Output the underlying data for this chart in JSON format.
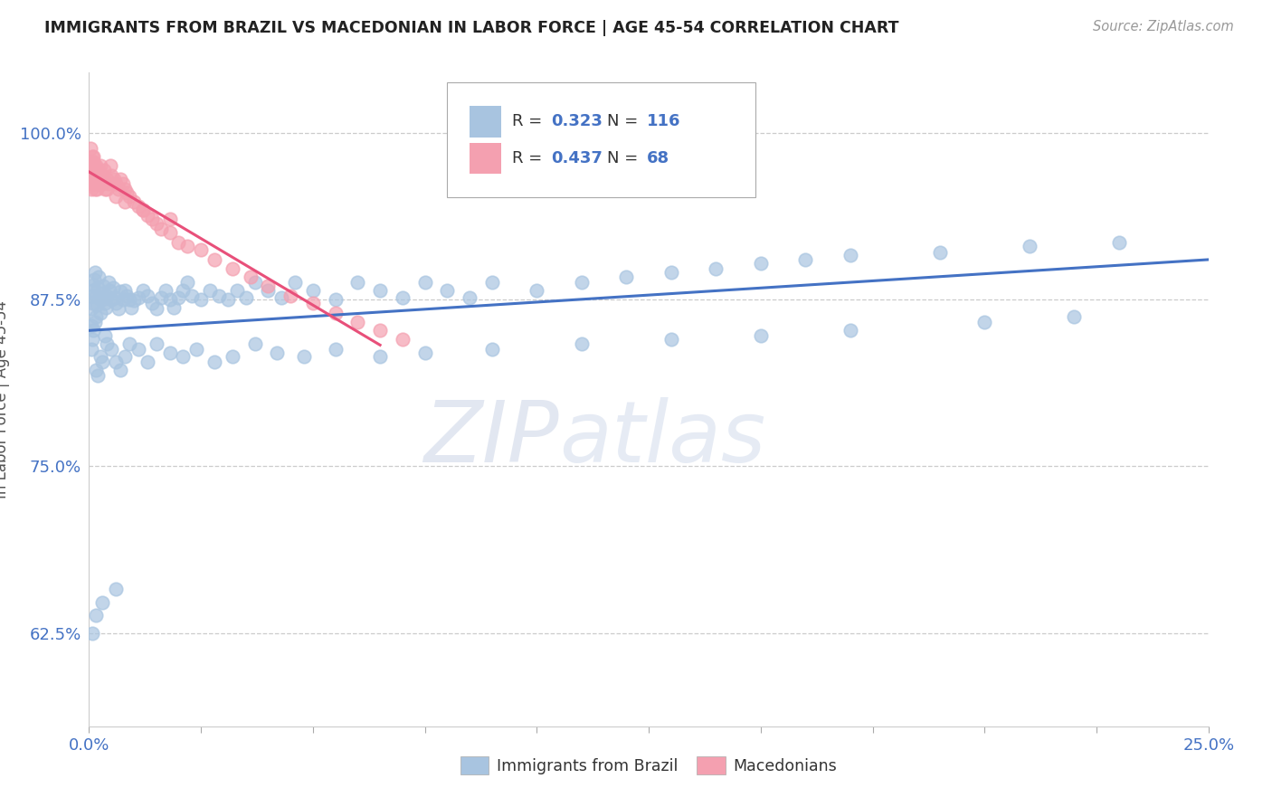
{
  "title": "IMMIGRANTS FROM BRAZIL VS MACEDONIAN IN LABOR FORCE | AGE 45-54 CORRELATION CHART",
  "source": "Source: ZipAtlas.com",
  "ylabel": "In Labor Force | Age 45-54",
  "yticks": [
    0.625,
    0.75,
    0.875,
    1.0
  ],
  "ytick_labels": [
    "62.5%",
    "75.0%",
    "87.5%",
    "100.0%"
  ],
  "xlim": [
    0.0,
    0.25
  ],
  "ylim": [
    0.555,
    1.045
  ],
  "brazil_R": 0.323,
  "brazil_N": 116,
  "macedonian_R": 0.437,
  "macedonian_N": 68,
  "brazil_color": "#a8c4e0",
  "macedonian_color": "#f4a0b0",
  "brazil_line_color": "#4472c4",
  "macedonian_line_color": "#e8507a",
  "legend_brazil_label": "Immigrants from Brazil",
  "legend_macedonian_label": "Macedonians",
  "watermark_zip": "ZIP",
  "watermark_atlas": "atlas",
  "brazil_x": [
    0.0005,
    0.0006,
    0.0007,
    0.0008,
    0.0009,
    0.001,
    0.0012,
    0.0013,
    0.0015,
    0.0016,
    0.0018,
    0.002,
    0.0022,
    0.0024,
    0.0026,
    0.0028,
    0.003,
    0.0032,
    0.0035,
    0.0038,
    0.004,
    0.0043,
    0.0046,
    0.005,
    0.0053,
    0.0057,
    0.006,
    0.0065,
    0.007,
    0.0075,
    0.008,
    0.0085,
    0.009,
    0.0095,
    0.01,
    0.011,
    0.012,
    0.013,
    0.014,
    0.015,
    0.016,
    0.017,
    0.018,
    0.019,
    0.02,
    0.021,
    0.022,
    0.023,
    0.025,
    0.027,
    0.029,
    0.031,
    0.033,
    0.035,
    0.037,
    0.04,
    0.043,
    0.046,
    0.05,
    0.055,
    0.06,
    0.065,
    0.07,
    0.075,
    0.08,
    0.085,
    0.09,
    0.1,
    0.11,
    0.12,
    0.13,
    0.14,
    0.15,
    0.16,
    0.17,
    0.19,
    0.21,
    0.23,
    0.0005,
    0.0007,
    0.001,
    0.0013,
    0.0016,
    0.002,
    0.0025,
    0.003,
    0.0035,
    0.004,
    0.005,
    0.006,
    0.007,
    0.008,
    0.009,
    0.011,
    0.013,
    0.015,
    0.018,
    0.021,
    0.024,
    0.028,
    0.032,
    0.037,
    0.042,
    0.048,
    0.055,
    0.065,
    0.075,
    0.09,
    0.11,
    0.13,
    0.15,
    0.17,
    0.2,
    0.22,
    0.0008,
    0.0015,
    0.003,
    0.006
  ],
  "brazil_y": [
    0.855,
    0.868,
    0.872,
    0.878,
    0.882,
    0.886,
    0.89,
    0.895,
    0.878,
    0.862,
    0.871,
    0.884,
    0.892,
    0.876,
    0.865,
    0.88,
    0.875,
    0.885,
    0.872,
    0.869,
    0.878,
    0.888,
    0.882,
    0.875,
    0.884,
    0.876,
    0.872,
    0.868,
    0.881,
    0.875,
    0.882,
    0.878,
    0.875,
    0.869,
    0.874,
    0.876,
    0.882,
    0.878,
    0.872,
    0.868,
    0.876,
    0.882,
    0.875,
    0.869,
    0.876,
    0.882,
    0.888,
    0.878,
    0.875,
    0.882,
    0.878,
    0.875,
    0.882,
    0.876,
    0.888,
    0.882,
    0.876,
    0.888,
    0.882,
    0.875,
    0.888,
    0.882,
    0.876,
    0.888,
    0.882,
    0.876,
    0.888,
    0.882,
    0.888,
    0.892,
    0.895,
    0.898,
    0.902,
    0.905,
    0.908,
    0.91,
    0.915,
    0.918,
    0.838,
    0.845,
    0.852,
    0.858,
    0.822,
    0.818,
    0.832,
    0.828,
    0.848,
    0.842,
    0.838,
    0.828,
    0.822,
    0.832,
    0.842,
    0.838,
    0.828,
    0.842,
    0.835,
    0.832,
    0.838,
    0.828,
    0.832,
    0.842,
    0.835,
    0.832,
    0.838,
    0.832,
    0.835,
    0.838,
    0.842,
    0.845,
    0.848,
    0.852,
    0.858,
    0.862,
    0.625,
    0.638,
    0.648,
    0.658
  ],
  "macedonian_x": [
    0.0003,
    0.0004,
    0.0005,
    0.0006,
    0.0007,
    0.0008,
    0.0009,
    0.001,
    0.0011,
    0.0012,
    0.0013,
    0.0014,
    0.0015,
    0.0016,
    0.0017,
    0.0018,
    0.002,
    0.0022,
    0.0024,
    0.0026,
    0.0028,
    0.003,
    0.0033,
    0.0036,
    0.004,
    0.0043,
    0.0047,
    0.005,
    0.0055,
    0.006,
    0.0065,
    0.007,
    0.0075,
    0.008,
    0.0085,
    0.009,
    0.01,
    0.011,
    0.012,
    0.013,
    0.014,
    0.015,
    0.016,
    0.018,
    0.02,
    0.022,
    0.025,
    0.028,
    0.032,
    0.036,
    0.04,
    0.045,
    0.05,
    0.055,
    0.06,
    0.065,
    0.07,
    0.0004,
    0.0007,
    0.001,
    0.0015,
    0.002,
    0.003,
    0.004,
    0.006,
    0.008,
    0.012,
    0.018
  ],
  "macedonian_y": [
    0.965,
    0.972,
    0.968,
    0.958,
    0.962,
    0.975,
    0.978,
    0.982,
    0.972,
    0.968,
    0.958,
    0.962,
    0.975,
    0.968,
    0.958,
    0.965,
    0.972,
    0.968,
    0.962,
    0.975,
    0.968,
    0.965,
    0.972,
    0.958,
    0.965,
    0.962,
    0.975,
    0.968,
    0.965,
    0.962,
    0.958,
    0.965,
    0.962,
    0.958,
    0.955,
    0.952,
    0.948,
    0.945,
    0.942,
    0.938,
    0.935,
    0.932,
    0.928,
    0.925,
    0.918,
    0.915,
    0.912,
    0.905,
    0.898,
    0.892,
    0.885,
    0.878,
    0.872,
    0.865,
    0.858,
    0.852,
    0.845,
    0.988,
    0.982,
    0.978,
    0.972,
    0.968,
    0.962,
    0.958,
    0.952,
    0.948,
    0.942,
    0.935
  ]
}
